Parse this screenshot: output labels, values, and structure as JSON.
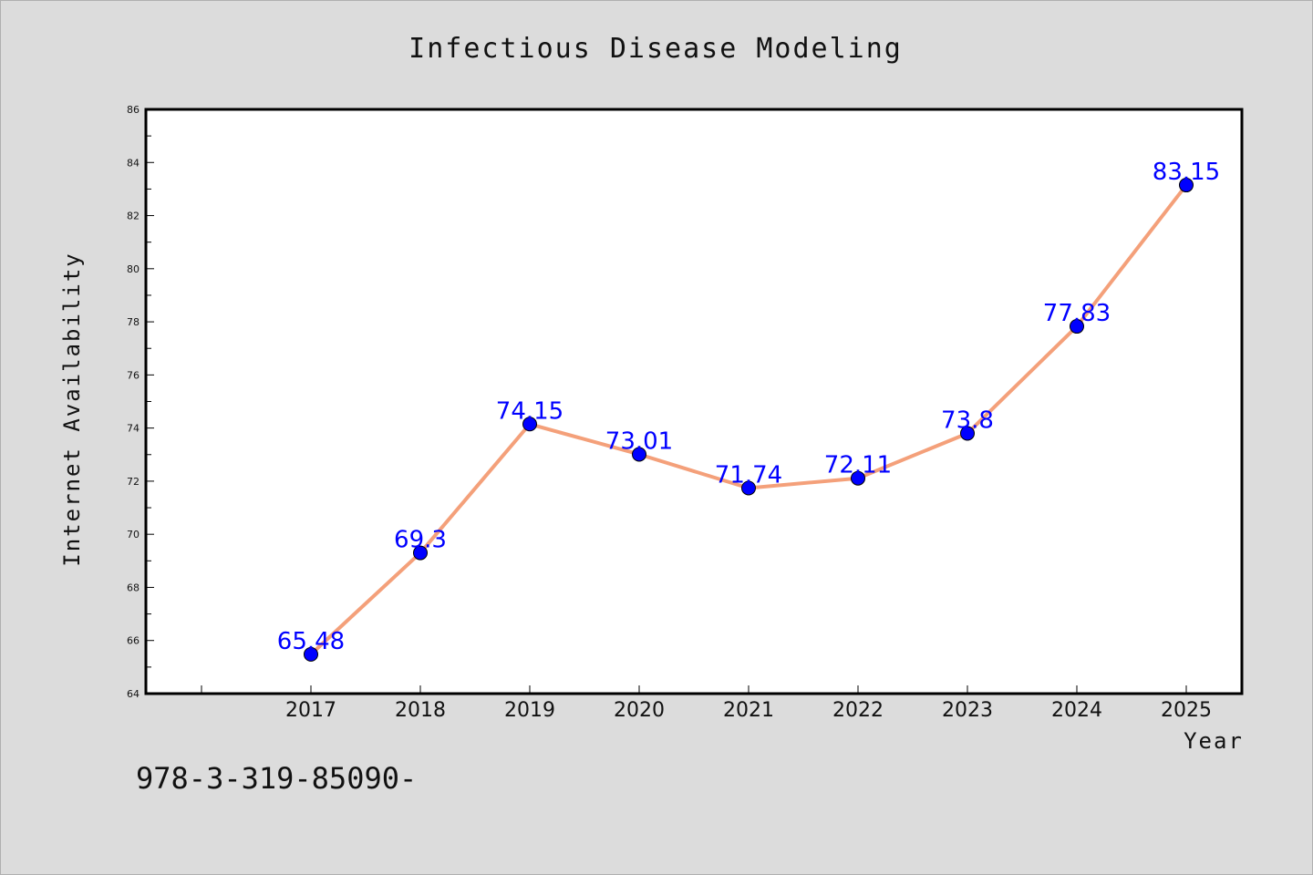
{
  "chart_data": {
    "type": "line",
    "title": "Infectious Disease Modeling",
    "xlabel": "Year",
    "ylabel": "Internet Availability",
    "categories": [
      "2017",
      "2018",
      "2019",
      "2020",
      "2021",
      "2022",
      "2023",
      "2024",
      "2025"
    ],
    "values": [
      65.48,
      69.3,
      74.15,
      73.01,
      71.74,
      72.11,
      73.8,
      77.83,
      83.15
    ],
    "data_labels": [
      "65.48",
      "69.3",
      "74.15",
      "73.01",
      "71.74",
      "72.11",
      "73.8",
      "77.83",
      "83.15"
    ],
    "ylim": [
      64,
      86
    ],
    "yticks": [
      "64",
      "66",
      "68",
      "70",
      "72",
      "74",
      "76",
      "78",
      "80",
      "82",
      "84",
      "86"
    ],
    "grid": false,
    "legend": "none",
    "line_color": "#f4a07a",
    "marker_color": "#0000ff",
    "label_color": "#0000ff",
    "background_color": "#dcdcdc",
    "plot_background_color": "#ffffff"
  },
  "footer_text": "978-3-319-85090-"
}
